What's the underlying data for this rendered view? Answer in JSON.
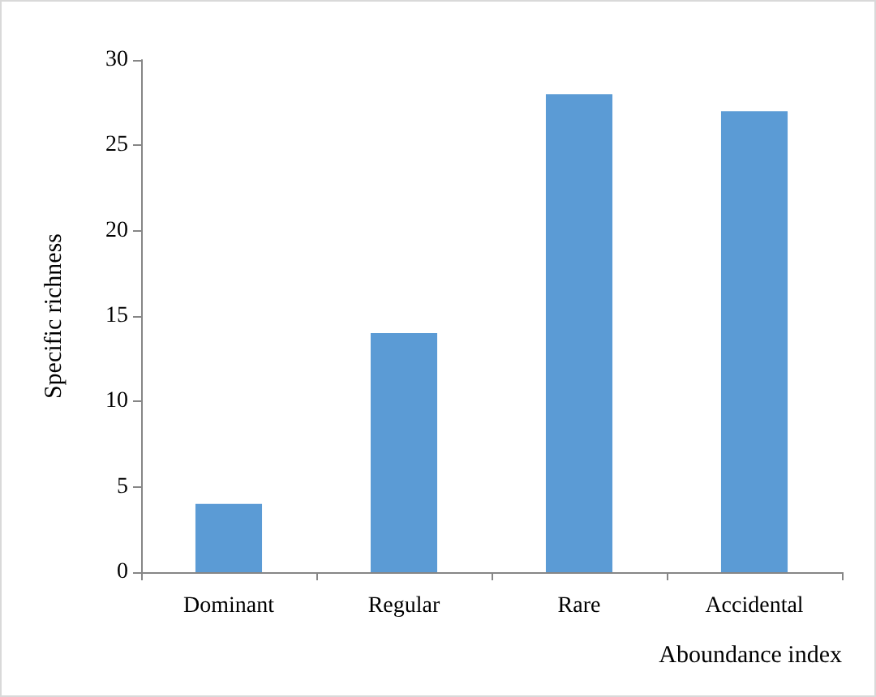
{
  "chart_data": {
    "type": "bar",
    "xlabel": "Aboundance index",
    "ylabel": "Specific richness",
    "categories": [
      "Dominant",
      "Regular",
      "Rare",
      "Accidental"
    ],
    "values": [
      4,
      14,
      28,
      27
    ],
    "color": "#5b9bd5",
    "ylim": [
      0,
      30
    ],
    "yticks": [
      0,
      5,
      10,
      15,
      20,
      25,
      30
    ],
    "grid": false
  }
}
